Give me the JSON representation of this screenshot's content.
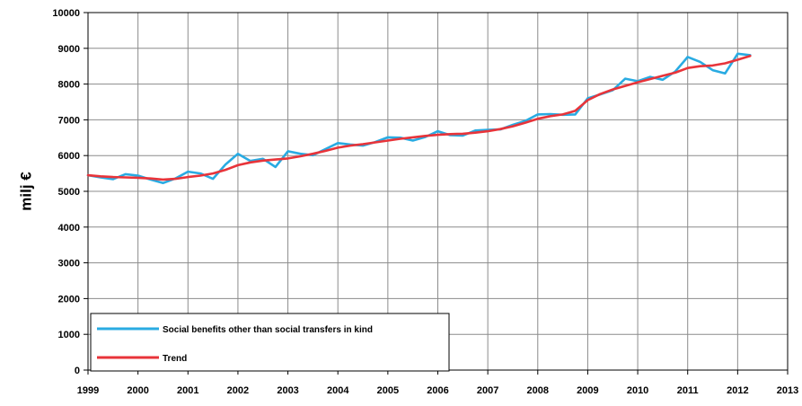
{
  "chart_data": {
    "type": "line",
    "title": "",
    "xlabel": "",
    "ylabel": "milj €",
    "xlim": [
      1999,
      2013
    ],
    "ylim": [
      0,
      10000
    ],
    "x_ticks": [
      "1999",
      "2000",
      "2001",
      "2002",
      "2003",
      "2004",
      "2005",
      "2006",
      "2007",
      "2008",
      "2009",
      "2010",
      "2011",
      "2012",
      "2013"
    ],
    "y_ticks": [
      "0",
      "1000",
      "2000",
      "3000",
      "4000",
      "5000",
      "6000",
      "7000",
      "8000",
      "9000",
      "10000"
    ],
    "grid": true,
    "legend_position": "bottom-left",
    "x": [
      1999.0,
      1999.25,
      1999.5,
      1999.75,
      2000.0,
      2000.25,
      2000.5,
      2000.75,
      2001.0,
      2001.25,
      2001.5,
      2001.75,
      2002.0,
      2002.25,
      2002.5,
      2002.75,
      2003.0,
      2003.25,
      2003.5,
      2003.75,
      2004.0,
      2004.25,
      2004.5,
      2004.75,
      2005.0,
      2005.25,
      2005.5,
      2005.75,
      2006.0,
      2006.25,
      2006.5,
      2006.75,
      2007.0,
      2007.25,
      2007.5,
      2007.75,
      2008.0,
      2008.25,
      2008.5,
      2008.75,
      2009.0,
      2009.25,
      2009.5,
      2009.75,
      2010.0,
      2010.25,
      2010.5,
      2010.75,
      2011.0,
      2011.25,
      2011.5,
      2011.75,
      2012.0,
      2012.25
    ],
    "series": [
      {
        "name": "Social benefits other than social transfers in kind",
        "color": "#29abe2",
        "values": [
          5450,
          5390,
          5340,
          5480,
          5440,
          5330,
          5230,
          5360,
          5550,
          5500,
          5350,
          5750,
          6050,
          5850,
          5910,
          5680,
          6120,
          6050,
          6010,
          6180,
          6350,
          6310,
          6280,
          6380,
          6510,
          6500,
          6420,
          6520,
          6680,
          6570,
          6560,
          6700,
          6720,
          6730,
          6860,
          6970,
          7150,
          7160,
          7140,
          7150,
          7600,
          7710,
          7830,
          8150,
          8080,
          8200,
          8120,
          8350,
          8760,
          8620,
          8390,
          8300,
          8850,
          8810
        ]
      },
      {
        "name": "Trend",
        "color": "#e8343a",
        "values": [
          5450,
          5420,
          5400,
          5390,
          5380,
          5360,
          5330,
          5350,
          5400,
          5440,
          5500,
          5600,
          5730,
          5810,
          5860,
          5890,
          5920,
          5980,
          6050,
          6130,
          6220,
          6280,
          6320,
          6370,
          6420,
          6470,
          6510,
          6550,
          6580,
          6600,
          6610,
          6640,
          6680,
          6740,
          6820,
          6920,
          7030,
          7100,
          7150,
          7250,
          7550,
          7720,
          7850,
          7950,
          8050,
          8140,
          8230,
          8320,
          8450,
          8500,
          8520,
          8580,
          8680,
          8790
        ]
      }
    ]
  }
}
